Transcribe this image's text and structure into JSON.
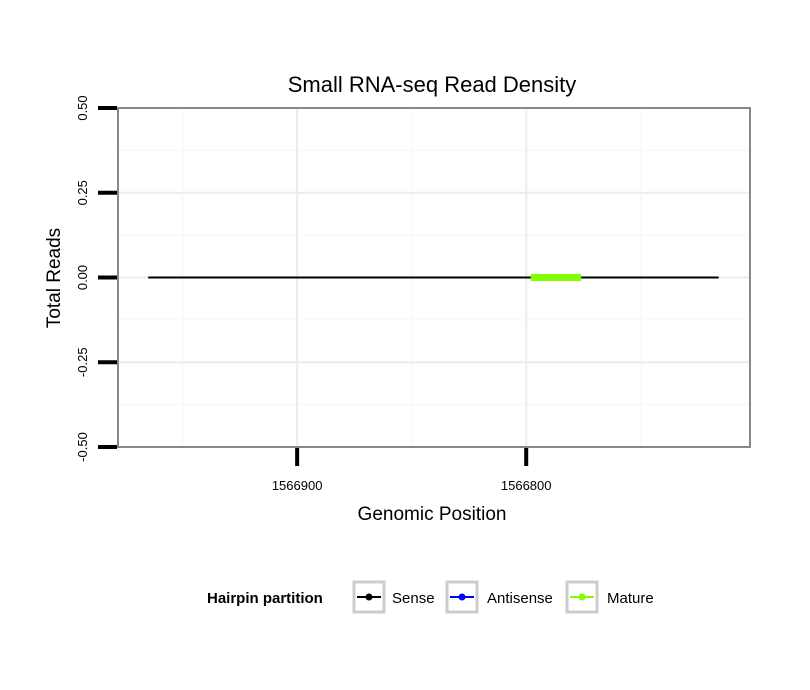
{
  "chart_data": {
    "type": "line",
    "title": "Small RNA-seq Read Density",
    "xlabel": "Genomic Position",
    "ylabel": "Total Reads",
    "xlim": [
      1566978.2,
      1566702.3
    ],
    "x_reversed": true,
    "x_ticks": [
      1566900,
      1566800
    ],
    "x_tick_labels": [
      "1566900",
      "1566800"
    ],
    "ylim": [
      -0.5,
      0.5
    ],
    "y_ticks": [
      -0.5,
      -0.25,
      0,
      0.25,
      0.5
    ],
    "y_tick_labels": [
      "-0.50",
      "-0.25",
      "0.00",
      "0.25",
      "0.50"
    ],
    "grid": true,
    "legend_position": "bottom",
    "legend_title": "Hairpin partition",
    "series": [
      {
        "name": "Sense",
        "color": "#000000",
        "x": [
          1566965,
          1566716
        ],
        "y": [
          0,
          0
        ]
      },
      {
        "name": "Antisense",
        "color": "#0000ff",
        "x": [
          1566965,
          1566716
        ],
        "y": [
          0,
          0
        ]
      },
      {
        "name": "Mature",
        "color": "#7fff00",
        "x": [
          1566798,
          1566776
        ],
        "y": [
          0,
          0
        ]
      }
    ]
  }
}
